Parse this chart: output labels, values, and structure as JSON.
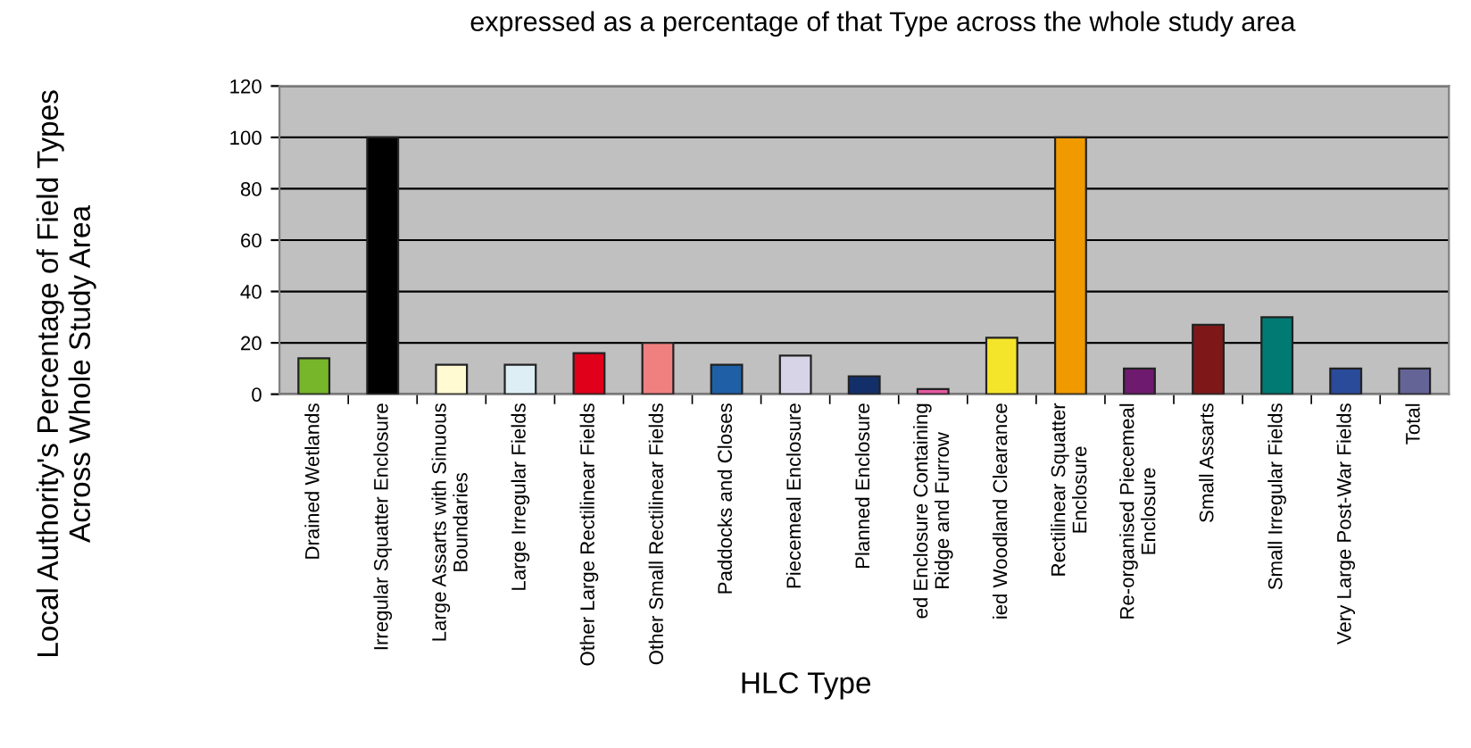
{
  "chart_data": {
    "type": "bar",
    "title": "expressed as a percentage of that Type across the whole study area",
    "xlabel": "HLC Type",
    "ylabel": "Local Authority's Percentage of Field Types\nAcross Whole Study Area",
    "categories": [
      "Drained Wetlands",
      "Irregular Squatter Enclosure",
      "Large Assarts with Sinuous\nBoundaries",
      "Large Irregular Fields",
      "Other Large Rectilinear Fields",
      "Other Small Rectilinear Fields",
      "Paddocks and Closes",
      "Piecemeal Enclosure",
      "Planned Enclosure",
      "ed Enclosure Containing\nRidge and Furrow",
      "ied Woodland Clearance",
      "Rectilinear Squatter\nEnclosure",
      "Re-organised Piecemeal\nEnclosure",
      "Small Assarts",
      "Small Irregular Fields",
      "Very Large Post-War Fields",
      "Total"
    ],
    "values": [
      14,
      100,
      11.5,
      11.5,
      16,
      20,
      11.5,
      15,
      7,
      2,
      22,
      100,
      10,
      27,
      30,
      10,
      10
    ],
    "colors": [
      "#77b52a",
      "#000000",
      "#fffad2",
      "#ddeff4",
      "#e0001a",
      "#f08080",
      "#1f5fa6",
      "#d8d4e8",
      "#132f6a",
      "#e65aa0",
      "#f5e52a",
      "#f09a00",
      "#6e1a6e",
      "#7e1818",
      "#007a72",
      "#2a4a9a",
      "#646496"
    ],
    "ylim": [
      0,
      120
    ],
    "yticks": [
      0,
      20,
      40,
      60,
      80,
      100,
      120
    ],
    "grid": "y"
  }
}
